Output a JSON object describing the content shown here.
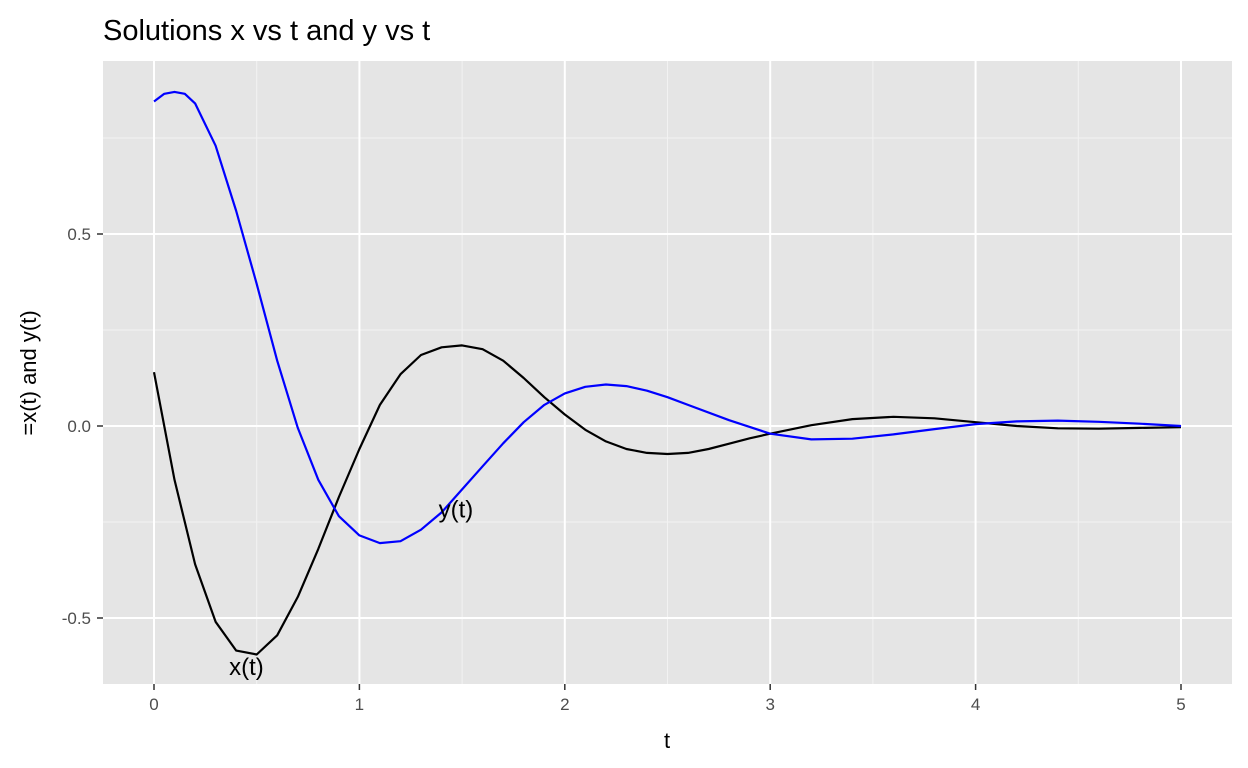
{
  "chart_data": {
    "type": "line",
    "title": "Solutions x vs t and y vs t",
    "xlabel": "t",
    "ylabel": "=x(t) and y(t)",
    "xlim": [
      0,
      5
    ],
    "ylim": [
      -0.6,
      0.87
    ],
    "x_ticks": [
      0,
      1,
      2,
      3,
      4,
      5
    ],
    "x_tick_labels": [
      "0",
      "1",
      "2",
      "3",
      "4",
      "5"
    ],
    "y_ticks": [
      -0.5,
      0.0,
      0.5
    ],
    "y_tick_labels": [
      "-0.5",
      "0.0",
      "0.5"
    ],
    "grid": true,
    "background": "#e5e5e5",
    "series": [
      {
        "name": "x(t)",
        "color": "#000000",
        "x": [
          0,
          0.1,
          0.2,
          0.3,
          0.4,
          0.5,
          0.6,
          0.7,
          0.8,
          0.9,
          1.0,
          1.1,
          1.2,
          1.3,
          1.4,
          1.5,
          1.6,
          1.7,
          1.8,
          1.9,
          2.0,
          2.1,
          2.2,
          2.3,
          2.4,
          2.5,
          2.6,
          2.7,
          2.8,
          2.9,
          3.0,
          3.2,
          3.4,
          3.6,
          3.8,
          4.0,
          4.2,
          4.4,
          4.6,
          4.8,
          5.0
        ],
        "y": [
          0.14,
          -0.14,
          -0.36,
          -0.51,
          -0.585,
          -0.595,
          -0.545,
          -0.445,
          -0.32,
          -0.185,
          -0.06,
          0.055,
          0.135,
          0.185,
          0.205,
          0.21,
          0.2,
          0.17,
          0.125,
          0.075,
          0.03,
          -0.01,
          -0.04,
          -0.06,
          -0.07,
          -0.073,
          -0.07,
          -0.06,
          -0.046,
          -0.032,
          -0.02,
          0.002,
          0.018,
          0.024,
          0.02,
          0.01,
          0.0,
          -0.006,
          -0.007,
          -0.005,
          -0.003
        ]
      },
      {
        "name": "y(t)",
        "color": "#0000ff",
        "x": [
          0,
          0.05,
          0.1,
          0.15,
          0.2,
          0.3,
          0.4,
          0.5,
          0.6,
          0.7,
          0.8,
          0.9,
          1.0,
          1.1,
          1.2,
          1.3,
          1.4,
          1.5,
          1.6,
          1.7,
          1.8,
          1.9,
          2.0,
          2.1,
          2.2,
          2.3,
          2.4,
          2.5,
          2.6,
          2.8,
          3.0,
          3.2,
          3.4,
          3.6,
          3.8,
          4.0,
          4.2,
          4.4,
          4.6,
          4.8,
          5.0
        ],
        "y": [
          0.845,
          0.865,
          0.87,
          0.865,
          0.84,
          0.73,
          0.56,
          0.37,
          0.17,
          -0.005,
          -0.14,
          -0.235,
          -0.285,
          -0.305,
          -0.3,
          -0.27,
          -0.225,
          -0.165,
          -0.105,
          -0.045,
          0.01,
          0.055,
          0.085,
          0.102,
          0.108,
          0.104,
          0.092,
          0.075,
          0.055,
          0.015,
          -0.02,
          -0.035,
          -0.033,
          -0.022,
          -0.008,
          0.005,
          0.012,
          0.014,
          0.011,
          0.006,
          0.0
        ]
      }
    ],
    "annotations": [
      {
        "text": "x(t)",
        "x": 0.45,
        "y": -0.625
      },
      {
        "text": "y(t)",
        "x": 1.47,
        "y": -0.215
      }
    ]
  }
}
